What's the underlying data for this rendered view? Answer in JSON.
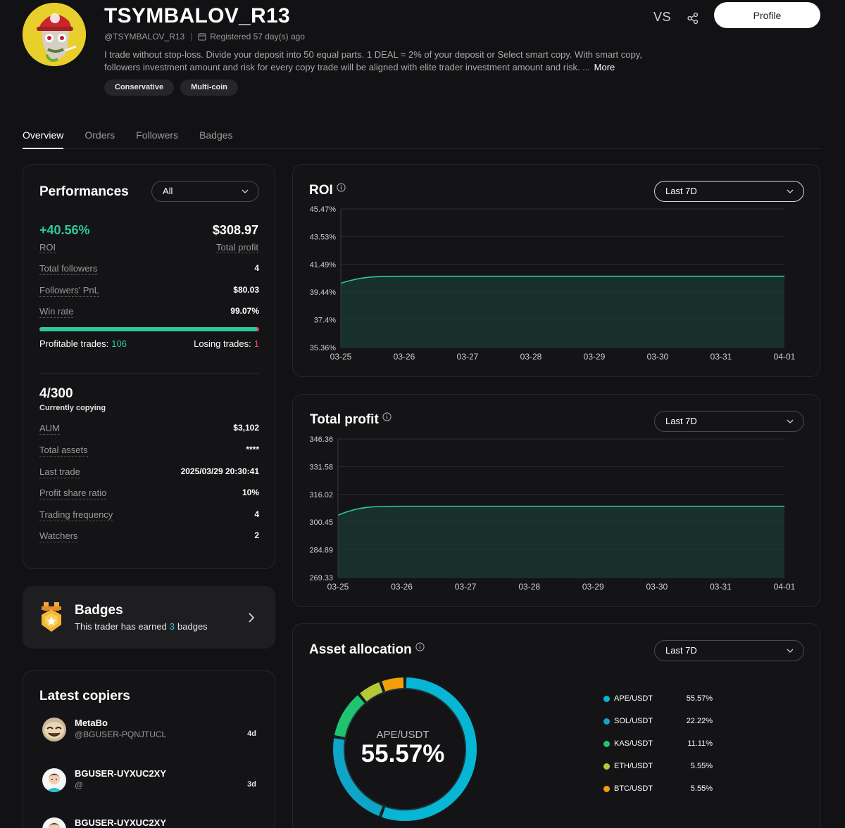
{
  "header": {
    "name": "TSYMBALOV_R13",
    "handle": "@TSYMBALOV_R13",
    "registered": "Registered 57 day(s) ago",
    "bio": "I trade without stop-loss. Divide your deposit into 50 equal parts. 1 DEAL = 2% of your deposit or Select smart copy. With smart copy, followers investment amount and risk for every copy trade will be aligned with elite trader investment amount and risk. ...",
    "more_label": "More",
    "tags": [
      "Conservative",
      "Multi-coin"
    ],
    "vs_label": "VS",
    "profile_label": "Profile"
  },
  "tabs": [
    "Overview",
    "Orders",
    "Followers",
    "Badges"
  ],
  "performance": {
    "title": "Performances",
    "filter": "All",
    "roi_value": "+40.56%",
    "roi_label": "ROI",
    "profit_value": "$308.97",
    "profit_label": "Total profit",
    "stats": [
      {
        "label": "Total followers",
        "value": "4"
      },
      {
        "label": "Followers' PnL",
        "value": "$80.03"
      },
      {
        "label": "Win rate",
        "value": "99.07%"
      }
    ],
    "win_fraction": 0.9907,
    "profitable_label": "Profitable trades:",
    "profitable_value": "106",
    "losing_label": "Losing trades:",
    "losing_value": "1",
    "copying_count": "4/300",
    "copying_label": "Currently copying",
    "details": [
      {
        "label": "AUM",
        "value": "$3,102"
      },
      {
        "label": "Total assets",
        "value": "****"
      },
      {
        "label": "Last trade",
        "value": "2025/03/29 20:30:41"
      },
      {
        "label": "Profit share ratio",
        "value": "10%"
      },
      {
        "label": "Trading frequency",
        "value": "4"
      },
      {
        "label": "Watchers",
        "value": "2"
      }
    ]
  },
  "badges": {
    "title": "Badges",
    "sub_before": "This trader has earned",
    "count": "3",
    "sub_after": "badges"
  },
  "copiers": {
    "title": "Latest copiers",
    "items": [
      {
        "name": "MetaBo",
        "handle": "@BGUSER-PQNJTUCL",
        "ago": "4d"
      },
      {
        "name": "BGUSER-UYXUC2XY",
        "handle": "@",
        "ago": "3d"
      },
      {
        "name": "BGUSER-UYXUC2XY",
        "handle": "",
        "ago": ""
      }
    ]
  },
  "roi_chart": {
    "title": "ROI",
    "period": "Last 7D",
    "chart_data": {
      "type": "area",
      "x": [
        "03-25",
        "03-26",
        "03-27",
        "03-28",
        "03-29",
        "03-30",
        "03-31",
        "04-01"
      ],
      "y_ticks": [
        "45.47%",
        "43.53%",
        "41.49%",
        "39.44%",
        "37.4%",
        "35.36%"
      ],
      "ylim": [
        35.36,
        45.47
      ],
      "series": [
        {
          "values": [
            40.05,
            40.56,
            40.56,
            40.56,
            40.56,
            40.56,
            40.56,
            40.56
          ]
        }
      ],
      "color": "#2ec99a"
    }
  },
  "profit_chart": {
    "title": "Total profit",
    "period": "Last 7D",
    "chart_data": {
      "type": "area",
      "x": [
        "03-25",
        "03-26",
        "03-27",
        "03-28",
        "03-29",
        "03-30",
        "03-31",
        "04-01"
      ],
      "y_ticks": [
        "346.36",
        "331.58",
        "316.02",
        "300.45",
        "284.89",
        "269.33"
      ],
      "ylim": [
        269.33,
        346.36
      ],
      "series": [
        {
          "values": [
            304.0,
            308.97,
            308.97,
            308.97,
            308.97,
            308.97,
            308.97,
            308.97
          ]
        }
      ],
      "color": "#2ec99a"
    }
  },
  "allocation": {
    "title": "Asset allocation",
    "period": "Last 7D",
    "center_label": "APE/USDT",
    "center_value": "55.57%",
    "chart_data": {
      "type": "pie",
      "categories": [
        "APE/USDT",
        "SOL/USDT",
        "KAS/USDT",
        "ETH/USDT",
        "BTC/USDT"
      ],
      "values": [
        55.57,
        22.22,
        11.11,
        5.55,
        5.55
      ],
      "labels": [
        "55.57%",
        "22.22%",
        "11.11%",
        "5.55%",
        "5.55%"
      ],
      "colors": [
        "#06b6d4",
        "#0ea5c7",
        "#20c46e",
        "#b7c837",
        "#f59e0b"
      ]
    }
  }
}
